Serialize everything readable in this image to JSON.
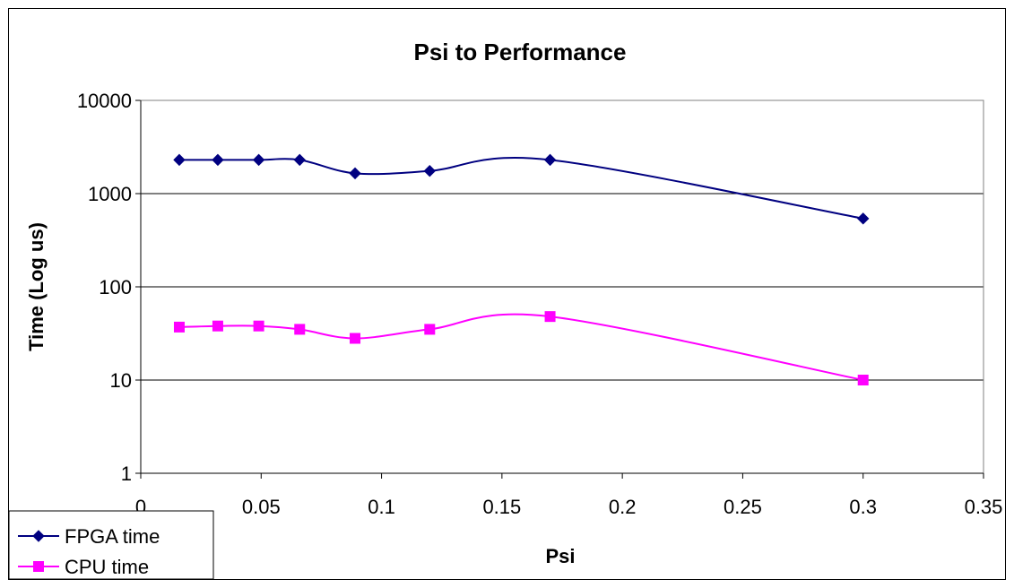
{
  "chart_data": {
    "type": "line",
    "title": "Psi to Performance",
    "xlabel": "Psi",
    "ylabel": "Time (Log us)",
    "xlim": [
      0,
      0.35
    ],
    "ylim": [
      1,
      10000
    ],
    "y_scale": "log",
    "grid": "horizontal major",
    "legend_position": "bottom-left",
    "x_ticks": [
      "0",
      "0.05",
      "0.1",
      "0.15",
      "0.2",
      "0.25",
      "0.3",
      "0.35"
    ],
    "y_ticks": [
      "1",
      "10",
      "100",
      "1000",
      "10000"
    ],
    "series": [
      {
        "name": "FPGA time",
        "color": "#000080",
        "marker": "diamond",
        "x": [
          0.016,
          0.032,
          0.049,
          0.066,
          0.089,
          0.12,
          0.17,
          0.3
        ],
        "y": [
          2300,
          2300,
          2300,
          2300,
          1650,
          1750,
          2300,
          540
        ]
      },
      {
        "name": "CPU time",
        "color": "#ff00ff",
        "marker": "square",
        "x": [
          0.016,
          0.032,
          0.049,
          0.066,
          0.089,
          0.12,
          0.17,
          0.3
        ],
        "y": [
          37,
          38,
          38,
          35,
          28,
          35,
          48,
          10
        ]
      }
    ]
  }
}
